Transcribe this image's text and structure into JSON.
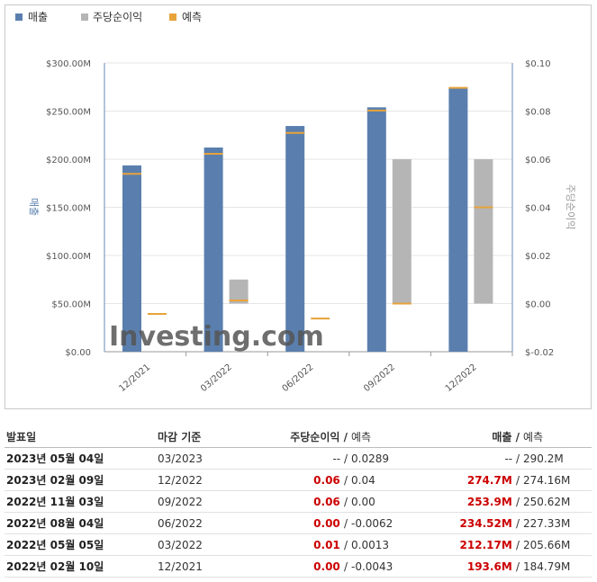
{
  "legend": {
    "sales": "매출",
    "eps": "주당순이익",
    "forecast": "예측"
  },
  "colors": {
    "sales": "#5a7fae",
    "eps": "#b5b5b5",
    "forecast": "#e8a33a",
    "red": "#cc0000"
  },
  "chart_data": {
    "type": "bar",
    "categories": [
      "12/2021",
      "03/2022",
      "06/2022",
      "09/2022",
      "12/2022"
    ],
    "y_left": {
      "label": "매출",
      "ticks": [
        "$300.00M",
        "$250.00M",
        "$200.00M",
        "$150.00M",
        "$100.00M",
        "$50.00M",
        "$0.00"
      ],
      "ylim": [
        0,
        300
      ]
    },
    "y_right": {
      "label": "주당순이익",
      "ticks": [
        "$0.10",
        "$0.08",
        "$0.06",
        "$0.04",
        "$0.02",
        "$0.00",
        "$-0.02"
      ],
      "ylim": [
        -0.02,
        0.1
      ]
    },
    "series": [
      {
        "name": "매출",
        "axis": "left",
        "values": [
          193.6,
          212.17,
          234.52,
          253.9,
          274.7
        ]
      },
      {
        "name": "매출 예측",
        "axis": "left",
        "values": [
          184.79,
          205.66,
          227.33,
          250.62,
          274.16
        ]
      },
      {
        "name": "주당순이익",
        "axis": "right",
        "values": [
          0.0,
          0.01,
          0.0,
          0.06,
          0.06
        ]
      },
      {
        "name": "주당순이익 예측",
        "axis": "right",
        "values": [
          -0.0043,
          0.0013,
          -0.0062,
          0.0,
          0.04
        ]
      }
    ],
    "watermark": "Investing.com"
  },
  "table": {
    "headers": {
      "date": "발표일",
      "period": "마감 기준",
      "eps": "주당순이익",
      "eps_fc": "예측",
      "rev": "매출",
      "rev_fc": "예측",
      "slash": "/"
    },
    "rows": [
      {
        "date": "2023년 05월 04일",
        "period": "03/2023",
        "eps": "--",
        "eps_fc": "0.0289",
        "rev": "--",
        "rev_fc": "290.2M"
      },
      {
        "date": "2023년 02월 09일",
        "period": "12/2022",
        "eps": "0.06",
        "eps_fc": "0.04",
        "rev": "274.7M",
        "rev_fc": "274.16M"
      },
      {
        "date": "2022년 11월 03일",
        "period": "09/2022",
        "eps": "0.06",
        "eps_fc": "0.00",
        "rev": "253.9M",
        "rev_fc": "250.62M"
      },
      {
        "date": "2022년 08월 04일",
        "period": "06/2022",
        "eps": "0.00",
        "eps_fc": "-0.0062",
        "rev": "234.52M",
        "rev_fc": "227.33M"
      },
      {
        "date": "2022년 05월 05일",
        "period": "03/2022",
        "eps": "0.01",
        "eps_fc": "0.0013",
        "rev": "212.17M",
        "rev_fc": "205.66M"
      },
      {
        "date": "2022년 02월 10일",
        "period": "12/2021",
        "eps": "0.00",
        "eps_fc": "-0.0043",
        "rev": "193.6M",
        "rev_fc": "184.79M"
      }
    ]
  }
}
